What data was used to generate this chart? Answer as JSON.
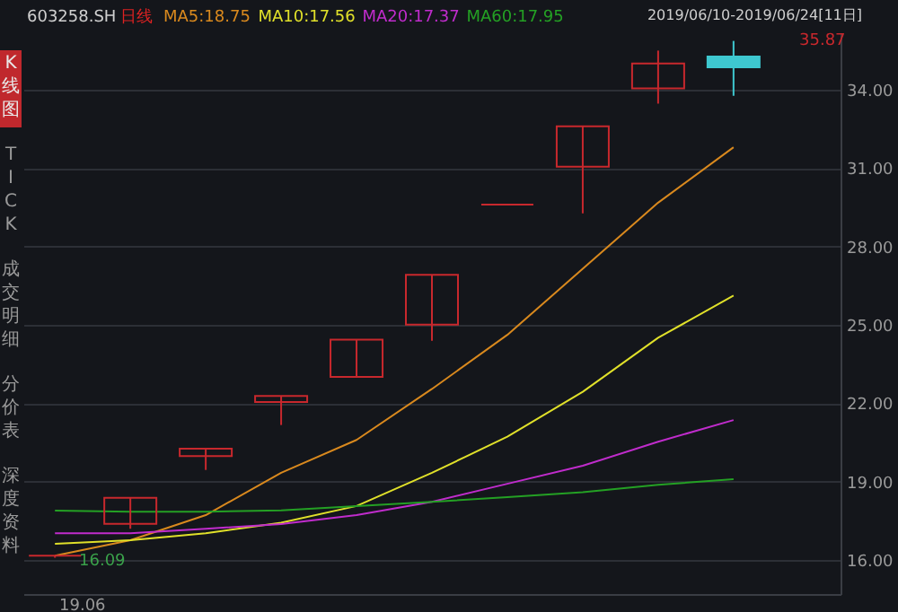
{
  "chart_data": {
    "type": "candlestick",
    "title": "603258.SH",
    "subtitle": "2019/06/10-2019/06/24[11日]",
    "categories": [
      null,
      null,
      null,
      null,
      null,
      null,
      null,
      null,
      null,
      null
    ],
    "ohlc": [
      [
        16.17,
        16.17,
        16.09,
        16.17
      ],
      [
        17.39,
        18.38,
        17.2,
        18.38
      ],
      [
        19.98,
        20.26,
        19.45,
        20.26
      ],
      [
        22.05,
        22.28,
        21.17,
        22.28
      ],
      [
        23.01,
        24.44,
        23.01,
        24.44
      ],
      [
        25.01,
        26.92,
        24.39,
        26.92
      ],
      [
        29.61,
        29.61,
        29.61,
        29.61
      ],
      [
        31.06,
        32.6,
        29.27,
        32.6
      ],
      [
        34.05,
        35.5,
        33.47,
        35.01
      ],
      [
        35.27,
        35.87,
        33.77,
        34.86
      ]
    ],
    "colors": [
      "#c8282d",
      "#c8282d",
      "#c8282d",
      "#c8282d",
      "#c8282d",
      "#c8282d",
      "#c8282d",
      "#c8282d",
      "#c8282d",
      "#3ec8d0"
    ],
    "series": [
      {
        "name": "MA5:18.75",
        "type": "line",
        "color": "#d9891e",
        "values": [
          16.17,
          16.76,
          17.72,
          19.34,
          20.6,
          22.55,
          24.62,
          27.15,
          29.68,
          31.8
        ]
      },
      {
        "name": "MA10:17.56",
        "type": "line",
        "color": "#e0e02a",
        "values": [
          16.62,
          16.76,
          17.03,
          17.43,
          18.07,
          19.34,
          20.72,
          22.44,
          24.51,
          26.12
        ]
      },
      {
        "name": "MA20:17.37",
        "type": "line",
        "color": "#c02ccc",
        "values": [
          17.03,
          17.03,
          17.2,
          17.38,
          17.72,
          18.23,
          18.92,
          19.61,
          20.53,
          21.36
        ]
      },
      {
        "name": "MA60:17.95",
        "type": "line",
        "color": "#24a024",
        "values": [
          17.89,
          17.85,
          17.85,
          17.9,
          18.07,
          18.23,
          18.41,
          18.6,
          18.88,
          19.1
        ]
      }
    ],
    "ylim": [
      14.7,
      36.2
    ],
    "yticks": [
      {
        "value": 16,
        "label": "16.00"
      },
      {
        "value": 19,
        "label": "19.00"
      },
      {
        "value": 22,
        "label": "22.00"
      },
      {
        "value": 25,
        "label": "25.00"
      },
      {
        "value": 28,
        "label": "28.00"
      },
      {
        "value": 31,
        "label": "31.00"
      },
      {
        "value": 34,
        "label": "34.00"
      }
    ],
    "grid": "y",
    "legend": "top",
    "marker": "none",
    "line_style": "solid",
    "tick_labels": "y",
    "annotations": [
      "日线",
      "19.06",
      "K线图",
      "TICK",
      "成交明细",
      "分价表",
      "深度资料",
      "16.09",
      "35.87"
    ]
  }
}
